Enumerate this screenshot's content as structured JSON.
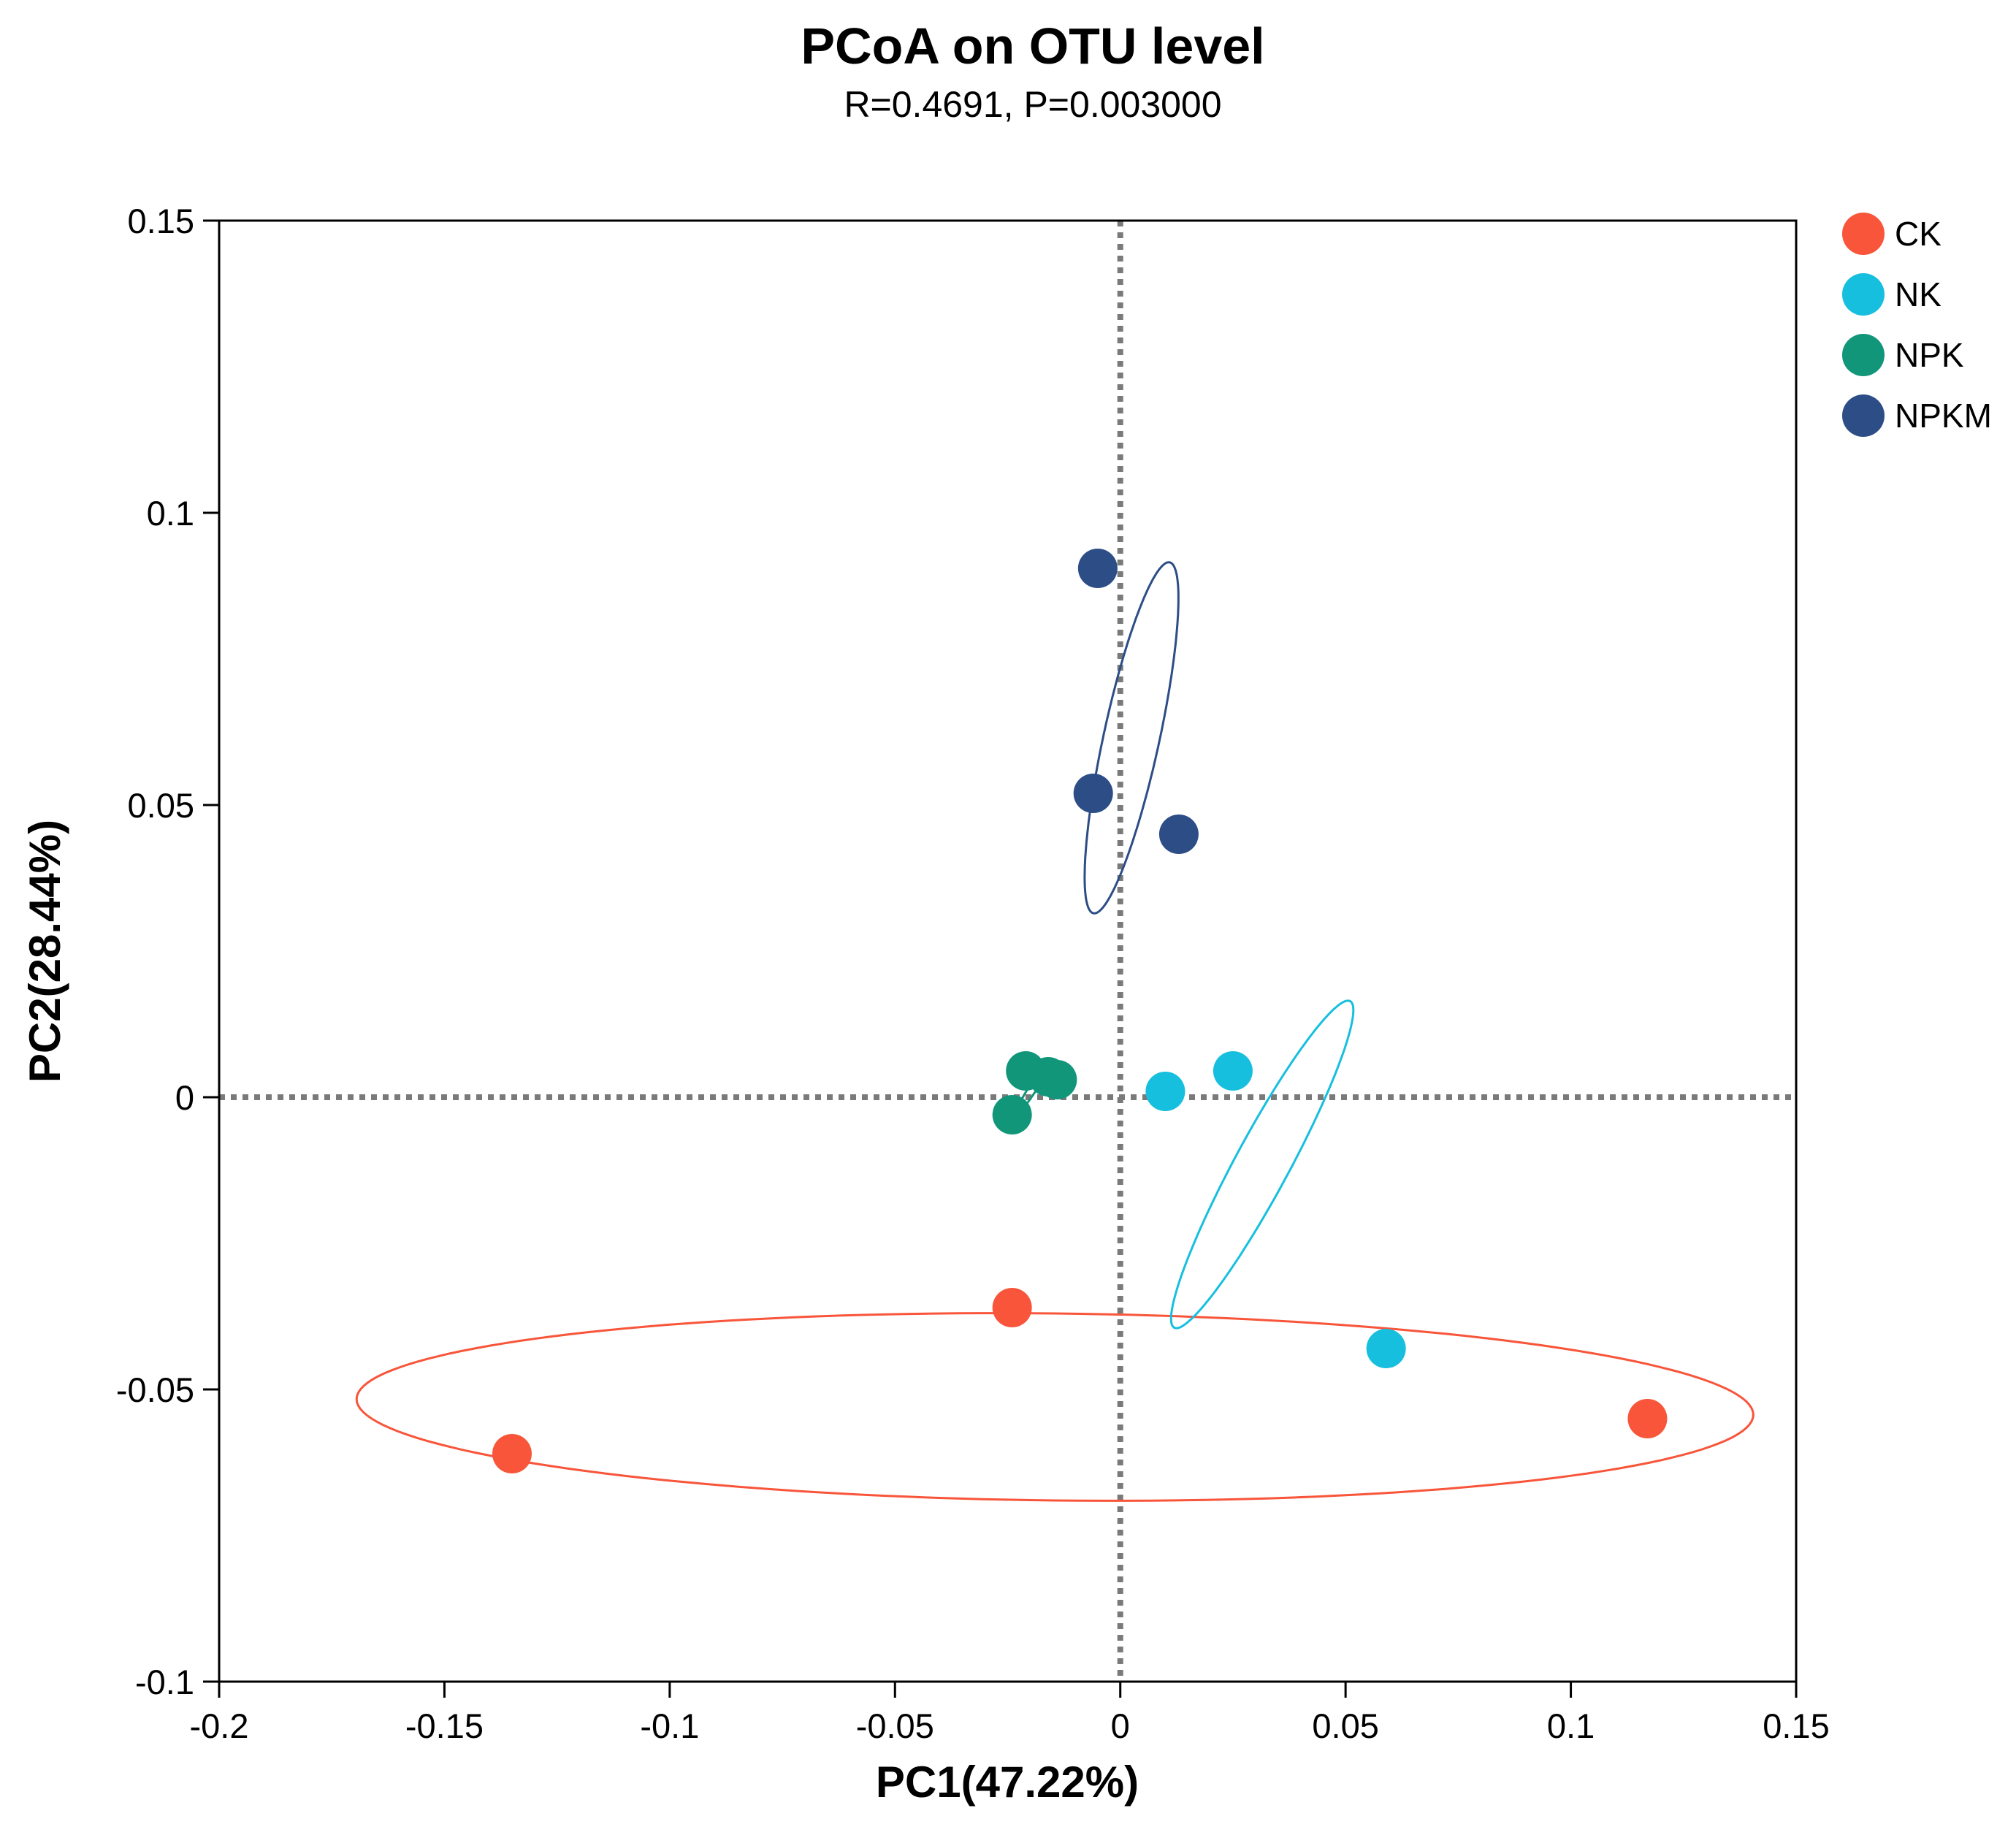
{
  "chart_data": {
    "type": "scatter",
    "title": "PCoA on OTU level",
    "subtitle": "R=0.4691, P=0.003000",
    "xlabel": "PC1(47.22%)",
    "ylabel": "PC2(28.44%)",
    "xlim": [
      -0.2,
      0.15
    ],
    "ylim": [
      -0.1,
      0.15
    ],
    "xticks": [
      -0.2,
      -0.15,
      -0.1,
      -0.05,
      0,
      0.05,
      0.1,
      0.15
    ],
    "xtick_labels": [
      "-0.2",
      "-0.15",
      "-0.1",
      "-0.05",
      "0",
      "0.05",
      "0.1",
      "0.15"
    ],
    "yticks": [
      -0.1,
      -0.05,
      0,
      0.05,
      0.1,
      0.15
    ],
    "ytick_labels": [
      "-0.1",
      "-0.05",
      "0",
      "0.05",
      "0.1",
      "0.15"
    ],
    "reference_lines": {
      "x": 0,
      "y": 0,
      "style": "dotted"
    },
    "legend_position": "top-right",
    "series": [
      {
        "name": "CK",
        "color": "#F8553A",
        "points": [
          [
            -0.135,
            -0.061
          ],
          [
            -0.024,
            -0.036
          ],
          [
            0.117,
            -0.055
          ]
        ],
        "ellipse": {
          "cx": -0.0145,
          "cy": -0.053,
          "rx": 0.155,
          "ry": 0.016,
          "angle_deg": -0.5
        }
      },
      {
        "name": "NK",
        "color": "#17BFDE",
        "points": [
          [
            0.01,
            0.001
          ],
          [
            0.025,
            0.0045
          ],
          [
            0.059,
            -0.043
          ]
        ],
        "ellipse": {
          "cx": 0.0315,
          "cy": -0.0115,
          "rx": 0.0341,
          "ry": 0.0056,
          "angle_deg": 54.7
        }
      },
      {
        "name": "NPK",
        "color": "#11967A",
        "points": [
          [
            -0.021,
            0.0045
          ],
          [
            -0.016,
            0.0035
          ],
          [
            -0.014,
            0.003
          ],
          [
            -0.024,
            -0.003
          ]
        ],
        "ellipse": {
          "cx": -0.0192,
          "cy": 0.0018,
          "rx": 0.0062,
          "ry": 0.0008,
          "angle_deg": 50
        }
      },
      {
        "name": "NPKM",
        "color": "#2C4D86",
        "points": [
          [
            -0.005,
            0.0905
          ],
          [
            -0.006,
            0.052
          ],
          [
            0.013,
            0.045
          ]
        ],
        "ellipse": {
          "cx": 0.0025,
          "cy": 0.0615,
          "rx": 0.0312,
          "ry": 0.0061,
          "angle_deg": 74
        }
      }
    ]
  }
}
